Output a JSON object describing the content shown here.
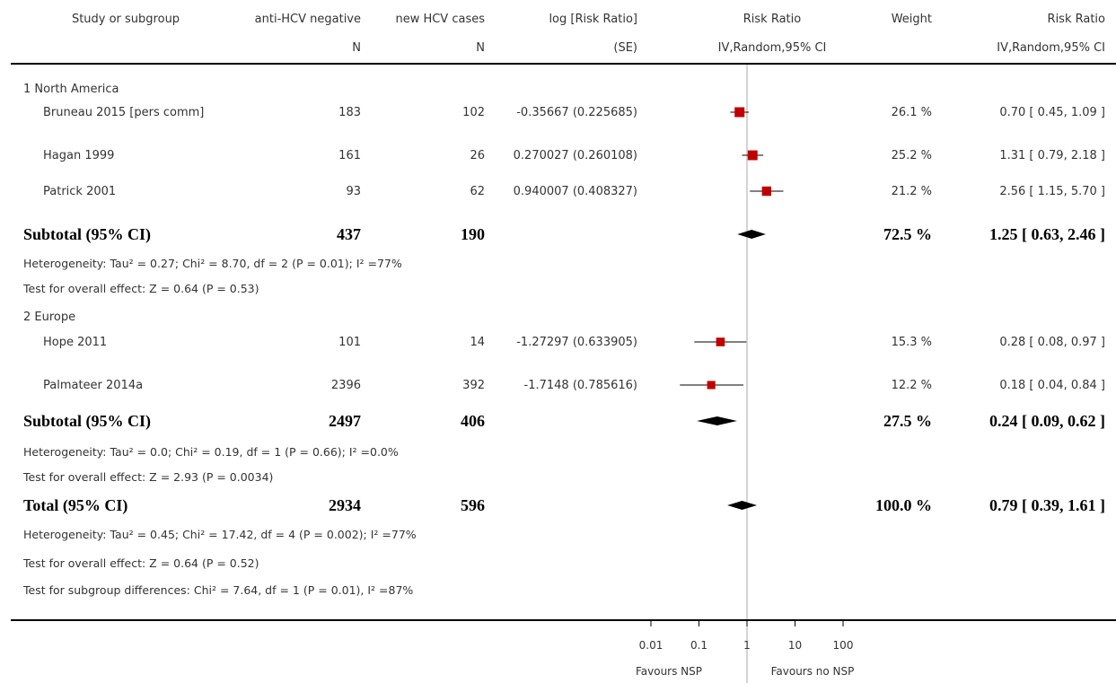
{
  "header": {
    "study": "Study or subgroup",
    "exp_label": "anti-HCV negative",
    "exp_sub": "N",
    "ctl_label": "new HCV cases",
    "ctl_sub": "N",
    "logrr": "log [Risk Ratio]",
    "logrr_sub": "(SE)",
    "rr": "Risk Ratio",
    "rr_sub": "IV,Random,95% CI",
    "weight": "Weight",
    "rr2": "Risk Ratio",
    "rr2_sub": "IV,Random,95% CI"
  },
  "groups": [
    {
      "title": "1 North America",
      "studies": [
        {
          "name": "Bruneau 2015 [pers comm]",
          "n1": "183",
          "n2": "102",
          "logrr": "-0.35667 (0.225685)",
          "weight": "26.1 %",
          "ci": "0.70 [ 0.45, 1.09 ]"
        },
        {
          "name": "Hagan 1999",
          "n1": "161",
          "n2": "26",
          "logrr": "0.270027 (0.260108)",
          "weight": "25.2 %",
          "ci": "1.31 [ 0.79, 2.18 ]"
        },
        {
          "name": "Patrick 2001",
          "n1": "93",
          "n2": "62",
          "logrr": "0.940007 (0.408327)",
          "weight": "21.2 %",
          "ci": "2.56 [ 1.15, 5.70 ]"
        }
      ],
      "subtotal": {
        "label": "Subtotal (95% CI)",
        "n1": "437",
        "n2": "190",
        "weight": "72.5 %",
        "ci": "1.25 [ 0.63, 2.46 ]"
      },
      "heterogeneity": "Heterogeneity: Tau² = 0.27; Chi² = 8.70, df = 2 (P = 0.01); I² =77%",
      "overall": "Test for overall effect: Z = 0.64 (P = 0.53)"
    },
    {
      "title": "2 Europe",
      "studies": [
        {
          "name": "Hope 2011",
          "n1": "101",
          "n2": "14",
          "logrr": "-1.27297 (0.633905)",
          "weight": "15.3 %",
          "ci": "0.28 [ 0.08, 0.97 ]"
        },
        {
          "name": "Palmateer 2014a",
          "n1": "2396",
          "n2": "392",
          "logrr": "-1.7148 (0.785616)",
          "weight": "12.2 %",
          "ci": "0.18 [ 0.04, 0.84 ]"
        }
      ],
      "subtotal": {
        "label": "Subtotal (95% CI)",
        "n1": "2497",
        "n2": "406",
        "weight": "27.5 %",
        "ci": "0.24 [ 0.09, 0.62 ]"
      },
      "heterogeneity": "Heterogeneity: Tau² = 0.0; Chi² = 0.19, df = 1 (P = 0.66); I² =0.0%",
      "overall": "Test for overall effect: Z = 2.93 (P = 0.0034)"
    }
  ],
  "total": {
    "label": "Total (95% CI)",
    "n1": "2934",
    "n2": "596",
    "weight": "100.0 %",
    "ci": "0.79 [ 0.39, 1.61 ]"
  },
  "total_heterogeneity": "Heterogeneity: Tau² = 0.45; Chi² = 17.42, df = 4 (P = 0.002); I² =77%",
  "total_overall": "Test for overall effect: Z = 0.64 (P = 0.52)",
  "subgroup_diff": "Test for subgroup differences: Chi² = 7.64, df = 1 (P = 0.01), I² =87%",
  "axis": {
    "ticks": [
      "0.01",
      "0.1",
      "1",
      "10",
      "100"
    ],
    "favours_left": "Favours NSP",
    "favours_right": "Favours no NSP"
  },
  "chart_data": {
    "type": "forest",
    "scale": "log",
    "xlim": [
      0.01,
      100
    ],
    "ticks": [
      0.01,
      0.1,
      1,
      10,
      100
    ],
    "studies": [
      {
        "name": "Bruneau 2015 [pers comm]",
        "rr": 0.7,
        "lo": 0.45,
        "hi": 1.09,
        "weight": 26.1
      },
      {
        "name": "Hagan 1999",
        "rr": 1.31,
        "lo": 0.79,
        "hi": 2.18,
        "weight": 25.2
      },
      {
        "name": "Patrick 2001",
        "rr": 2.56,
        "lo": 1.15,
        "hi": 5.7,
        "weight": 21.2
      },
      {
        "name": "Hope 2011",
        "rr": 0.28,
        "lo": 0.08,
        "hi": 0.97,
        "weight": 15.3
      },
      {
        "name": "Palmateer 2014a",
        "rr": 0.18,
        "lo": 0.04,
        "hi": 0.84,
        "weight": 12.2
      }
    ],
    "diamonds": [
      {
        "name": "Subtotal 1 North America",
        "rr": 1.25,
        "lo": 0.63,
        "hi": 2.46
      },
      {
        "name": "Subtotal 2 Europe",
        "rr": 0.24,
        "lo": 0.09,
        "hi": 0.62
      },
      {
        "name": "Total",
        "rr": 0.79,
        "lo": 0.39,
        "hi": 1.61
      }
    ],
    "colors": {
      "marker": "#c00000",
      "diamond": "#000000",
      "line": "#000000"
    }
  }
}
